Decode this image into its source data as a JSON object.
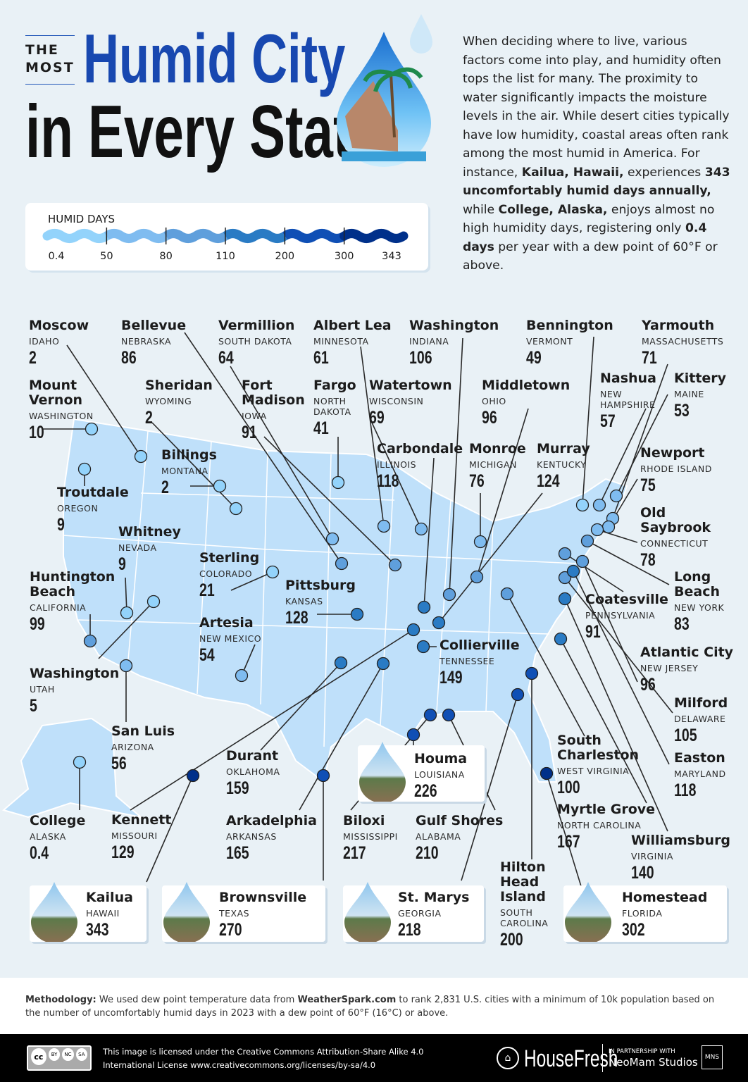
{
  "header": {
    "kicker": "THE MOST",
    "title_line1": "Humid City",
    "title_line2": "in Every State"
  },
  "intro": [
    {
      "t": "When deciding where to live, various factors come into play, and humidity often tops the list for many. The proximity to water significantly impacts the moisture levels in the air. While desert cities typically have low humidity, coastal areas often rank among the most humid in America. For instance, ",
      "b": false
    },
    {
      "t": "Kailua, Hawaii,",
      "b": true
    },
    {
      "t": " experiences ",
      "b": false
    },
    {
      "t": "343 uncomfortably humid days annually,",
      "b": true
    },
    {
      "t": " while ",
      "b": false
    },
    {
      "t": "College, Alaska,",
      "b": true
    },
    {
      "t": " enjoys almost no high humidity days, registering only ",
      "b": false
    },
    {
      "t": "0.4 days",
      "b": true
    },
    {
      "t": " per year with a dew point of 60°F or above.",
      "b": false
    }
  ],
  "legend": {
    "title": "HUMID DAYS",
    "ticks": [
      "0.4",
      "50",
      "80",
      "110",
      "200",
      "300",
      "343"
    ],
    "colors": [
      "#93d3fb",
      "#7fbcf0",
      "#5f9fdc",
      "#2a7bc4",
      "#0f4fb5",
      "#00308a"
    ]
  },
  "map_colors": {
    "land": "#bfe0fa",
    "border": "#ffffff",
    "line": "#2a2a2a"
  },
  "cities": [
    {
      "city": "Moscow",
      "state": "IDAHO",
      "days": "2"
    },
    {
      "city": "Bellevue",
      "state": "NEBRASKA",
      "days": "86"
    },
    {
      "city": "Vermillion",
      "state": "SOUTH DAKOTA",
      "days": "64"
    },
    {
      "city": "Albert Lea",
      "state": "MINNESOTA",
      "days": "61"
    },
    {
      "city": "Washington",
      "state": "INDIANA",
      "days": "106"
    },
    {
      "city": "Bennington",
      "state": "VERMONT",
      "days": "49"
    },
    {
      "city": "Yarmouth",
      "state": "MASSACHUSETTS",
      "days": "71"
    },
    {
      "city": "Mount Vernon",
      "state": "WASHINGTON",
      "days": "10"
    },
    {
      "city": "Sheridan",
      "state": "WYOMING",
      "days": "2"
    },
    {
      "city": "Fort Madison",
      "state": "IOWA",
      "days": "91"
    },
    {
      "city": "Fargo",
      "state": "NORTH DAKOTA",
      "days": "41"
    },
    {
      "city": "Watertown",
      "state": "WISCONSIN",
      "days": "69"
    },
    {
      "city": "Middletown",
      "state": "OHIO",
      "days": "96"
    },
    {
      "city": "Nashua",
      "state": "NEW HAMPSHIRE",
      "days": "57"
    },
    {
      "city": "Kittery",
      "state": "MAINE",
      "days": "53"
    },
    {
      "city": "Billings",
      "state": "MONTANA",
      "days": "2"
    },
    {
      "city": "Carbondale",
      "state": "ILLINOIS",
      "days": "118"
    },
    {
      "city": "Monroe",
      "state": "MICHIGAN",
      "days": "76"
    },
    {
      "city": "Murray",
      "state": "KENTUCKY",
      "days": "124"
    },
    {
      "city": "Newport",
      "state": "RHODE ISLAND",
      "days": "75"
    },
    {
      "city": "Troutdale",
      "state": "OREGON",
      "days": "9"
    },
    {
      "city": "Old Saybrook",
      "state": "CONNECTICUT",
      "days": "78"
    },
    {
      "city": "Whitney",
      "state": "NEVADA",
      "days": "9"
    },
    {
      "city": "Sterling",
      "state": "COLORADO",
      "days": "21"
    },
    {
      "city": "Long Beach",
      "state": "NEW YORK",
      "days": "83"
    },
    {
      "city": "Huntington Beach",
      "state": "CALIFORNIA",
      "days": "99"
    },
    {
      "city": "Pittsburg",
      "state": "KANSAS",
      "days": "128"
    },
    {
      "city": "Coatesville",
      "state": "PENNSYLVANIA",
      "days": "91"
    },
    {
      "city": "Artesia",
      "state": "NEW MEXICO",
      "days": "54"
    },
    {
      "city": "Collierville",
      "state": "TENNESSEE",
      "days": "149"
    },
    {
      "city": "Atlantic City",
      "state": "NEW JERSEY",
      "days": "96"
    },
    {
      "city": "Washington",
      "state": "UTAH",
      "days": "5"
    },
    {
      "city": "Milford",
      "state": "DELAWARE",
      "days": "105"
    },
    {
      "city": "San Luis",
      "state": "ARIZONA",
      "days": "56"
    },
    {
      "city": "South Charleston",
      "state": "WEST VIRGINIA",
      "days": "100"
    },
    {
      "city": "Durant",
      "state": "OKLAHOMA",
      "days": "159"
    },
    {
      "city": "Easton",
      "state": "MARYLAND",
      "days": "118"
    },
    {
      "city": "Myrtle Grove",
      "state": "NORTH CAROLINA",
      "days": "167"
    },
    {
      "city": "College",
      "state": "ALASKA",
      "days": "0.4"
    },
    {
      "city": "Kennett",
      "state": "MISSOURI",
      "days": "129"
    },
    {
      "city": "Arkadelphia",
      "state": "ARKANSAS",
      "days": "165"
    },
    {
      "city": "Biloxi",
      "state": "MISSISSIPPI",
      "days": "217"
    },
    {
      "city": "Gulf Shores",
      "state": "ALABAMA",
      "days": "210"
    },
    {
      "city": "Williamsburg",
      "state": "VIRGINIA",
      "days": "140"
    },
    {
      "city": "Hilton Head Island",
      "state": "SOUTH CAROLINA",
      "days": "200"
    },
    {
      "city": "Houma",
      "state": "LOUISIANA",
      "days": "226"
    },
    {
      "city": "Kailua",
      "state": "HAWAII",
      "days": "343"
    },
    {
      "city": "Brownsville",
      "state": "TEXAS",
      "days": "270"
    },
    {
      "city": "St. Marys",
      "state": "GEORGIA",
      "days": "218"
    },
    {
      "city": "Homestead",
      "state": "FLORIDA",
      "days": "302"
    }
  ],
  "methodology": {
    "label": "Methodology:",
    "pre": " We used dew point temperature data from ",
    "source": "WeatherSpark.com",
    "post": " to rank 2,831 U.S. cities with a minimum of 10k population based on the number of uncomfortably humid days in 2023 with a dew point of 60°F (16°C) or above."
  },
  "footer": {
    "cc_labels": [
      "BY",
      "NC",
      "SA"
    ],
    "license_line1": "This image is licensed under the Creative Commons Attribution-Share Alike 4.0",
    "license_line2": "International License www.creativecommons.org/licenses/by-sa/4.0",
    "brand": "HouseFresh",
    "partner_kicker": "IN PARTNERSHIP WITH",
    "partner": "NeoMam Studios"
  }
}
